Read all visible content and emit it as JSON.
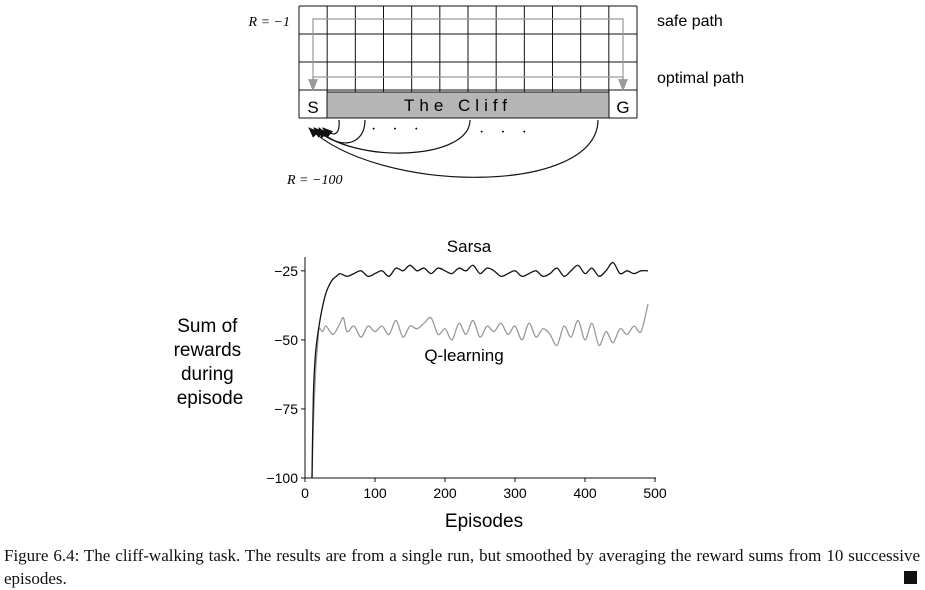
{
  "gridworld": {
    "rows": 4,
    "cols": 12,
    "start_label": "S",
    "goal_label": "G",
    "cliff_label": "The Cliff",
    "step_reward_label": "R = −1",
    "cliff_reward_label": "R = −100",
    "safe_path_label": "safe path",
    "optimal_path_label": "optimal path",
    "ellipsis": "· · ·"
  },
  "chart_data": {
    "type": "line",
    "xlabel": "Episodes",
    "ylabel": "Sum of rewards during episode",
    "ylabel_lines": [
      "Sum of",
      "rewards",
      "during",
      "episode"
    ],
    "xlim": [
      0,
      500
    ],
    "ylim": [
      -100,
      -20
    ],
    "xticks": [
      0,
      100,
      200,
      300,
      400,
      500
    ],
    "yticks": [
      -25,
      -50,
      -75,
      -100
    ],
    "ytick_labels": [
      "−25",
      "−50",
      "−75",
      "−100"
    ],
    "grid": false,
    "series": [
      {
        "name": "Sarsa",
        "color": "#111111",
        "x": [
          10,
          12,
          15,
          20,
          25,
          30,
          35,
          40,
          45,
          50,
          60,
          70,
          80,
          90,
          100,
          110,
          120,
          130,
          140,
          150,
          160,
          170,
          180,
          190,
          200,
          210,
          220,
          230,
          240,
          250,
          260,
          270,
          280,
          290,
          300,
          310,
          320,
          330,
          340,
          350,
          360,
          370,
          380,
          390,
          400,
          410,
          420,
          430,
          440,
          450,
          460,
          470,
          480,
          490
        ],
        "values": [
          -100,
          -70,
          -55,
          -45,
          -38,
          -33,
          -30,
          -28,
          -27,
          -26,
          -27,
          -26,
          -25,
          -27,
          -26,
          -25,
          -27,
          -24,
          -25,
          -23,
          -25,
          -24,
          -26,
          -24,
          -25,
          -26,
          -24,
          -25,
          -23,
          -26,
          -24,
          -25,
          -27,
          -26,
          -25,
          -27,
          -26,
          -25,
          -27,
          -26,
          -24,
          -27,
          -25,
          -23,
          -26,
          -24,
          -27,
          -25,
          -22,
          -26,
          -25,
          -26,
          -25,
          -25
        ]
      },
      {
        "name": "Q-learning",
        "color": "#999999",
        "x": [
          10,
          12,
          15,
          18,
          20,
          25,
          30,
          40,
          50,
          55,
          60,
          70,
          80,
          90,
          100,
          110,
          120,
          130,
          140,
          150,
          160,
          170,
          180,
          190,
          200,
          210,
          220,
          230,
          240,
          250,
          260,
          270,
          280,
          290,
          300,
          310,
          320,
          330,
          340,
          350,
          360,
          370,
          380,
          390,
          400,
          410,
          420,
          430,
          440,
          450,
          460,
          470,
          480,
          490
        ],
        "values": [
          -100,
          -80,
          -62,
          -52,
          -46,
          -47,
          -45,
          -48,
          -44,
          -42,
          -47,
          -45,
          -49,
          -45,
          -47,
          -45,
          -48,
          -43,
          -49,
          -45,
          -46,
          -44,
          -42,
          -48,
          -46,
          -50,
          -44,
          -48,
          -43,
          -49,
          -45,
          -47,
          -44,
          -48,
          -45,
          -50,
          -44,
          -49,
          -46,
          -48,
          -52,
          -45,
          -49,
          -43,
          -50,
          -44,
          -52,
          -47,
          -51,
          -46,
          -48,
          -45,
          -47,
          -37
        ]
      }
    ]
  },
  "caption": {
    "text": "Figure 6.4: The cliff-walking task. The results are from a single run, but smoothed by averaging the reward sums from 10 successive episodes."
  }
}
